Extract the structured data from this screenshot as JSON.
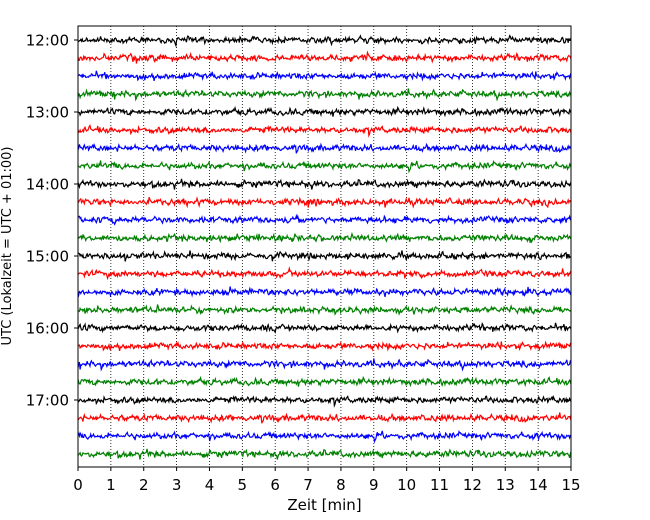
{
  "chart_data": {
    "type": "line",
    "title": "",
    "xlabel": "Zeit  [min]",
    "ylabel": "UTC (Lokalzeit = UTC + 01:00)",
    "xlim": [
      0,
      15
    ],
    "x_ticks": [
      0,
      1,
      2,
      3,
      4,
      5,
      6,
      7,
      8,
      9,
      10,
      11,
      12,
      13,
      14,
      15
    ],
    "x_tick_labels": [
      "0",
      "1",
      "2",
      "3",
      "4",
      "5",
      "6",
      "7",
      "8",
      "9",
      "10",
      "11",
      "12",
      "13",
      "14",
      "15"
    ],
    "y_tick_labels": [
      "12:00",
      "13:00",
      "14:00",
      "15:00",
      "16:00",
      "17:00"
    ],
    "grid": "vertical-dotted",
    "trace_colors": [
      "#000000",
      "#ff0000",
      "#0000ff",
      "#008000"
    ],
    "trace_count": 24,
    "trace_interval_minutes": 15,
    "start_time": "12:00",
    "end_time": "17:45",
    "series": [
      {
        "start": "12:00",
        "color": "#000000"
      },
      {
        "start": "12:15",
        "color": "#ff0000"
      },
      {
        "start": "12:30",
        "color": "#0000ff"
      },
      {
        "start": "12:45",
        "color": "#008000"
      },
      {
        "start": "13:00",
        "color": "#000000"
      },
      {
        "start": "13:15",
        "color": "#ff0000"
      },
      {
        "start": "13:30",
        "color": "#0000ff"
      },
      {
        "start": "13:45",
        "color": "#008000"
      },
      {
        "start": "14:00",
        "color": "#000000"
      },
      {
        "start": "14:15",
        "color": "#ff0000"
      },
      {
        "start": "14:30",
        "color": "#0000ff"
      },
      {
        "start": "14:45",
        "color": "#008000"
      },
      {
        "start": "15:00",
        "color": "#000000"
      },
      {
        "start": "15:15",
        "color": "#ff0000"
      },
      {
        "start": "15:30",
        "color": "#0000ff"
      },
      {
        "start": "15:45",
        "color": "#008000"
      },
      {
        "start": "16:00",
        "color": "#000000"
      },
      {
        "start": "16:15",
        "color": "#ff0000"
      },
      {
        "start": "16:30",
        "color": "#0000ff"
      },
      {
        "start": "16:45",
        "color": "#008000"
      },
      {
        "start": "17:00",
        "color": "#000000"
      },
      {
        "start": "17:15",
        "color": "#ff0000"
      },
      {
        "start": "17:30",
        "color": "#0000ff"
      },
      {
        "start": "17:45",
        "color": "#008000"
      }
    ]
  }
}
